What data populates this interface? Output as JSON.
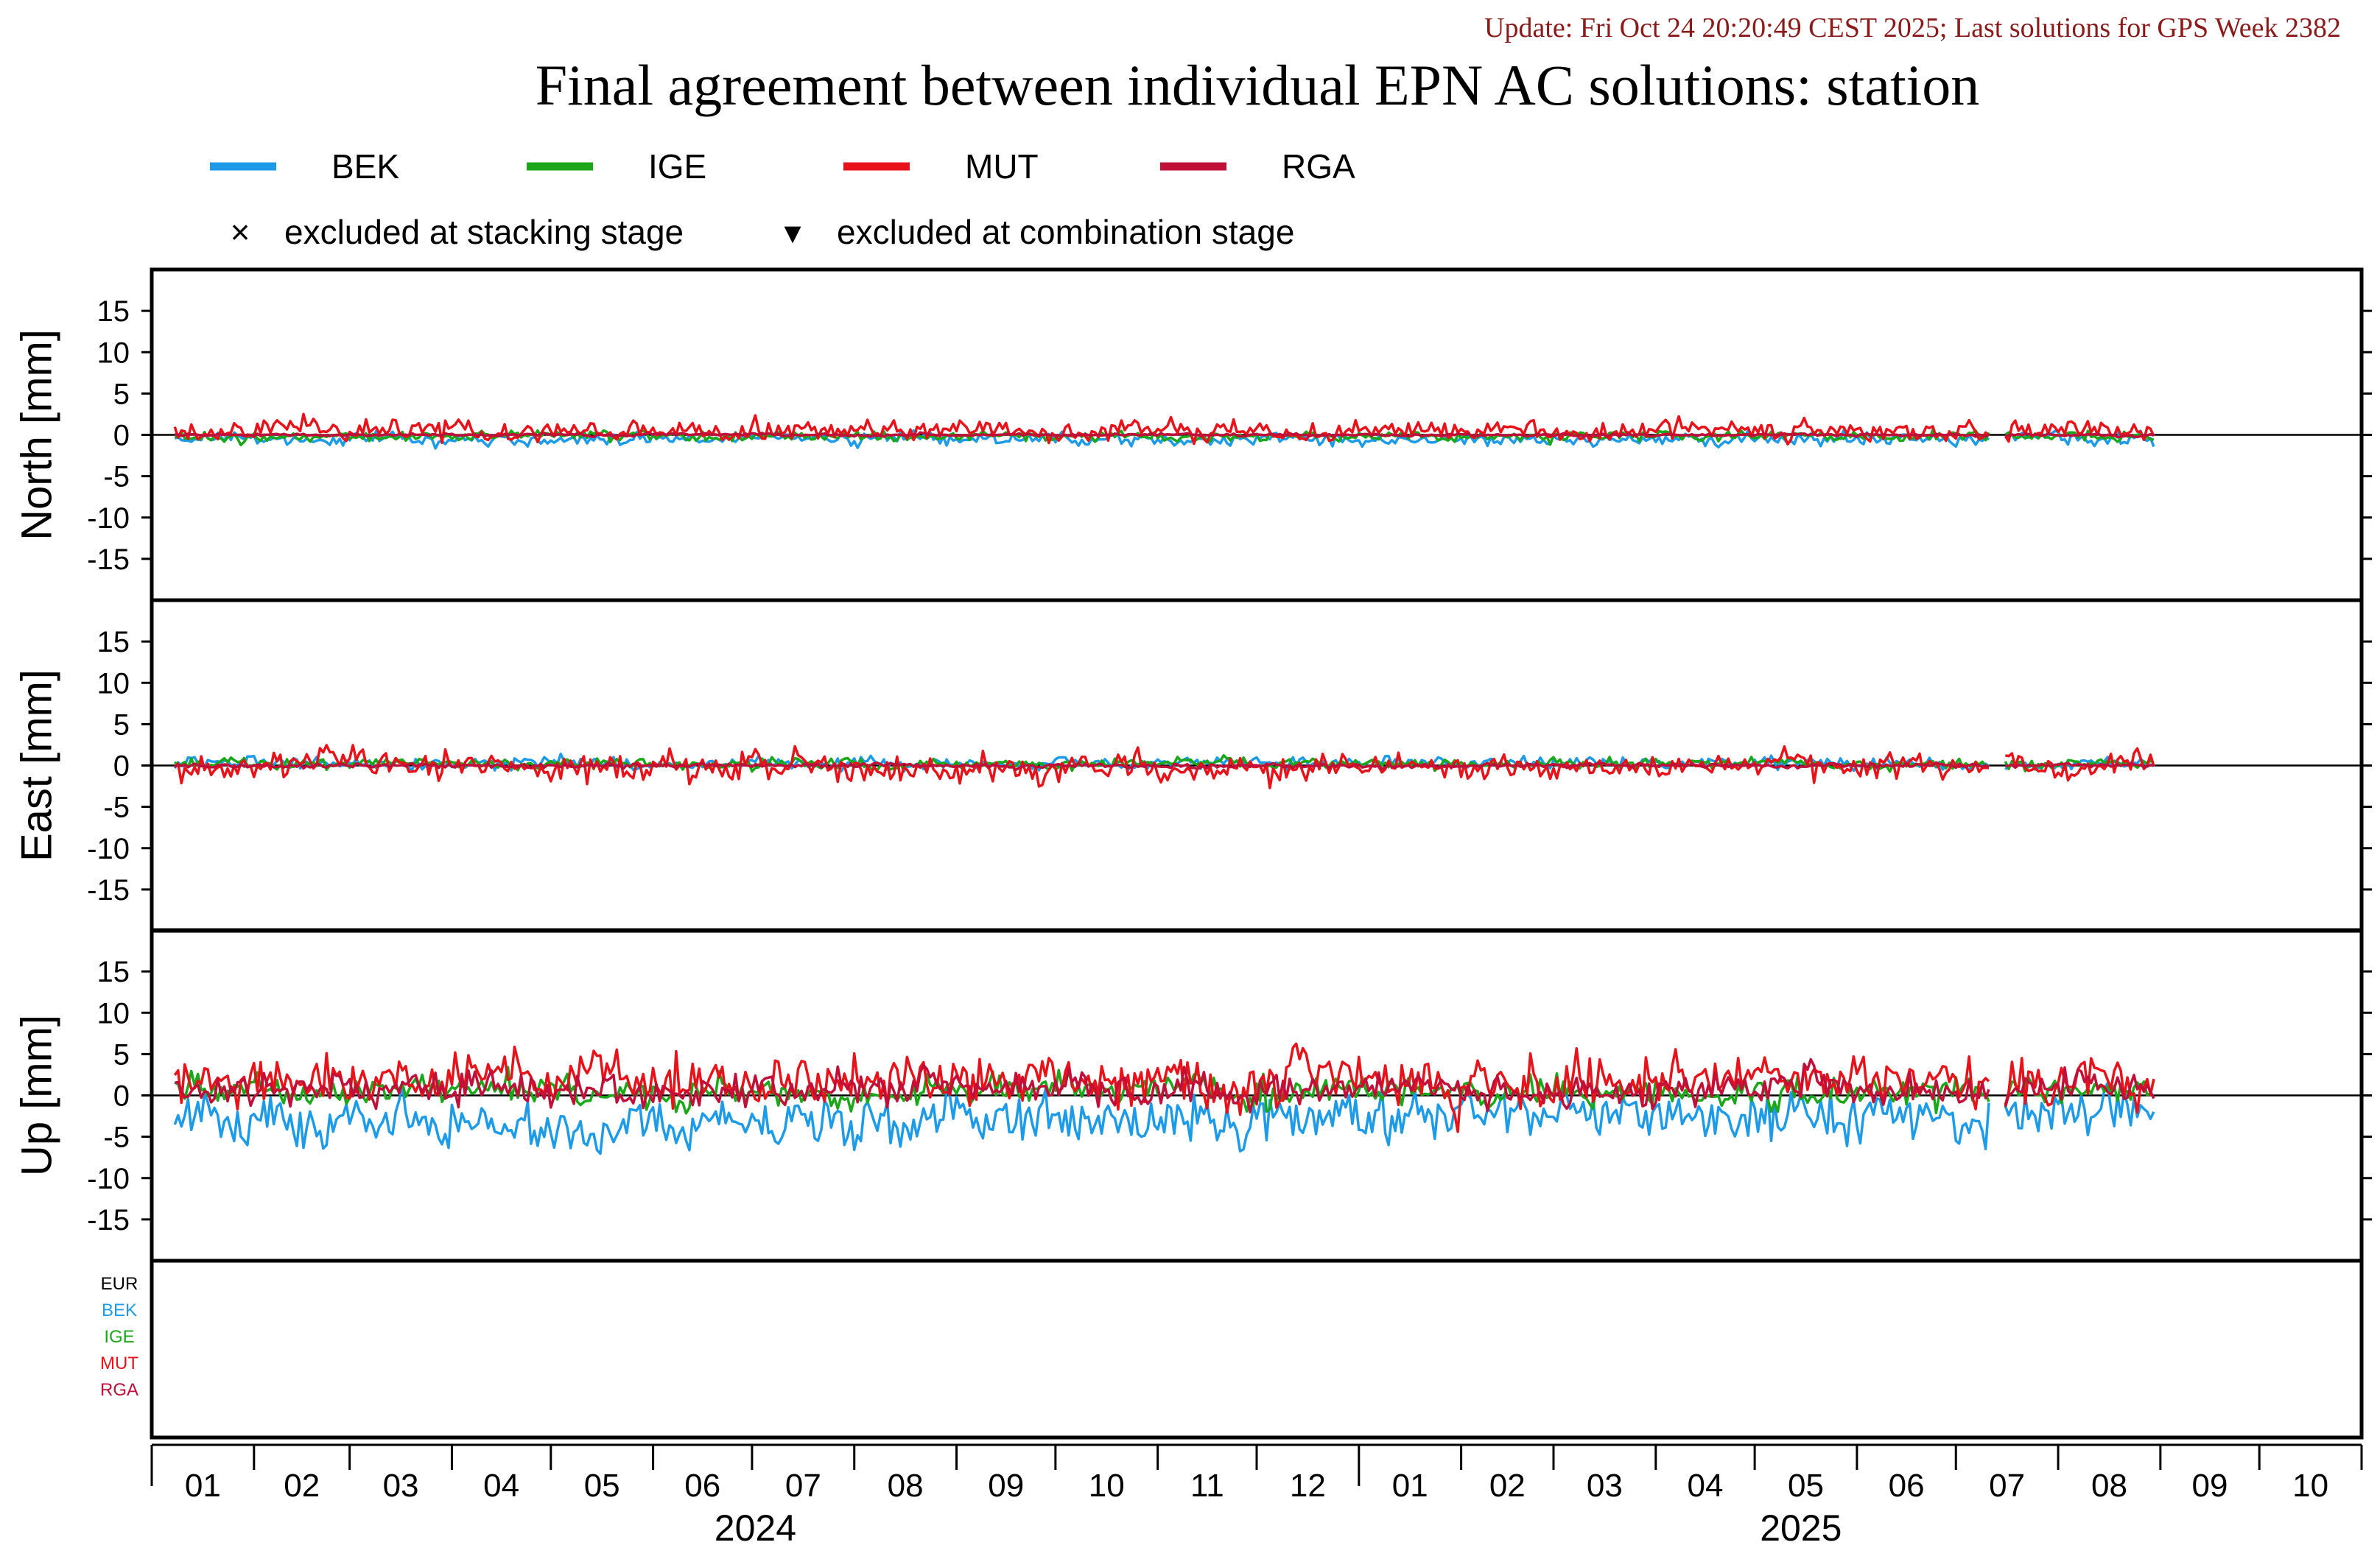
{
  "header": {
    "update_text": "Update: Fri Oct 24 20:20:49 CEST 2025; Last solutions for GPS Week 2382"
  },
  "legend": {
    "stacking_label": "excluded at stacking stage",
    "combination_label": "excluded at combination stage",
    "stacking_marker": "×",
    "combination_marker": "▾"
  },
  "ac_list": [
    {
      "name": "EUR",
      "color": "#000000"
    },
    {
      "name": "BEK",
      "color": "#1e9be8"
    },
    {
      "name": "IGE",
      "color": "#1aa81a"
    },
    {
      "name": "MUT",
      "color": "#e8121a"
    },
    {
      "name": "RGA",
      "color": "#c0103a"
    }
  ],
  "months": [
    "01",
    "02",
    "03",
    "04",
    "05",
    "06",
    "07",
    "08",
    "09",
    "10",
    "11",
    "12",
    "01",
    "02",
    "03",
    "04",
    "05",
    "06",
    "07",
    "08",
    "09",
    "10"
  ],
  "years": [
    "2024",
    "2025"
  ],
  "chart_data": {
    "type": "line",
    "title": "Final agreement between individual EPN AC solutions: station",
    "xlabel": "",
    "x_range": [
      "2024-01-01",
      "2025-10-31"
    ],
    "data_range": [
      "2024-01-08",
      "2025-08-30"
    ],
    "gap": [
      "2025-07-12",
      "2025-07-15"
    ],
    "ylim": [
      -20,
      20
    ],
    "yticks": [
      15,
      10,
      5,
      0,
      -5,
      -10,
      -15
    ],
    "grid": false,
    "legend_position": "top",
    "panels": [
      {
        "ylabel": "North [mm]",
        "series": [
          {
            "name": "BEK",
            "color": "#1e9be8",
            "mean": -0.5,
            "amplitude": 0.9
          },
          {
            "name": "IGE",
            "color": "#1aa81a",
            "mean": -0.2,
            "amplitude": 0.7
          },
          {
            "name": "MUT",
            "color": "#e8121a",
            "mean": 0.5,
            "amplitude": 1.4
          },
          {
            "name": "RGA",
            "color": "#c0103a",
            "mean": 0.0,
            "amplitude": 0.2
          }
        ]
      },
      {
        "ylabel": "East [mm]",
        "series": [
          {
            "name": "BEK",
            "color": "#1e9be8",
            "mean": 0.3,
            "amplitude": 0.8
          },
          {
            "name": "IGE",
            "color": "#1aa81a",
            "mean": 0.2,
            "amplitude": 0.7
          },
          {
            "name": "MUT",
            "color": "#e8121a",
            "mean": -0.2,
            "amplitude": 1.8
          },
          {
            "name": "RGA",
            "color": "#c0103a",
            "mean": 0.0,
            "amplitude": 0.3
          }
        ]
      },
      {
        "ylabel": "Up [mm]",
        "series": [
          {
            "name": "BEK",
            "color": "#1e9be8",
            "mean": -3.0,
            "amplitude": 3.5
          },
          {
            "name": "IGE",
            "color": "#1aa81a",
            "mean": 0.5,
            "amplitude": 2.0
          },
          {
            "name": "MUT",
            "color": "#e8121a",
            "mean": 2.0,
            "amplitude": 3.5
          },
          {
            "name": "RGA",
            "color": "#c0103a",
            "mean": 0.8,
            "amplitude": 2.2
          }
        ]
      }
    ]
  }
}
